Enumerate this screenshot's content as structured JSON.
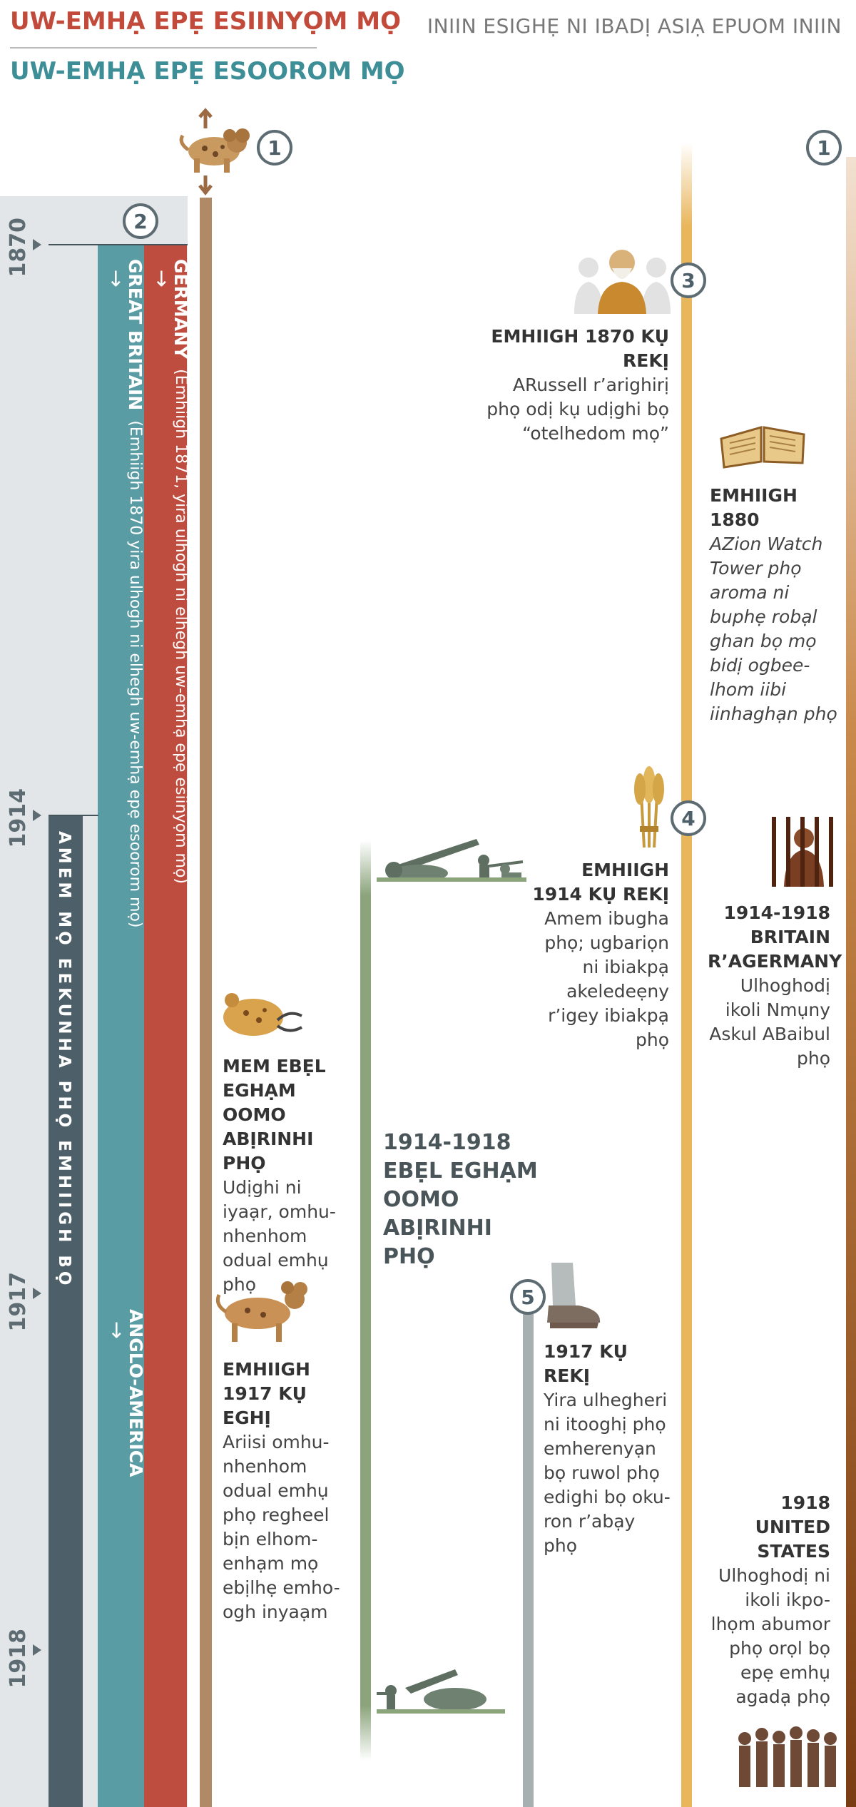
{
  "legend": {
    "primary_line": "UW-EMHẠ EPẸ ESIINYỌM MỌ",
    "secondary_line": "UW-EMHẠ EPẸ ESOOROM MỌ"
  },
  "header_title": "INIIN ESIGHẸ NI IBADỊ ASIẠ EPUOM INIIN",
  "years": [
    "1870",
    "1914",
    "1917",
    "1918"
  ],
  "markers": [
    "1",
    "1",
    "2",
    "3",
    "4",
    "5"
  ],
  "bars": {
    "germany_title": "GERMANY",
    "germany_note": "(Emhiigh 1871, yira ulhogh ni elhegh uw-emhạ epẹ esiinyọm mọ)",
    "britain_title": "GREAT BRITAIN",
    "britain_note": "(Emhiigh 1870 yira ulhogh ni elhegh uw-emhạ epẹ esoorom mọ)",
    "anglo_america": "ANGLO-AMERICA",
    "arrow": "→",
    "dark_label": "AMEM MỌ EEKUNHA PHỌ EMHIIGH BỌ"
  },
  "events": {
    "russell_title": "EMHIIGH 1870 KỤ REKỊ",
    "russell_body": "ARussell r’arighirị phọ odị kụ udịghi bọ “otelhedom mọ”",
    "watchtower_title": "EMHIIGH 1880",
    "watchtower_body": "AZion Watch Tower phọ aroma ni buphẹ robạl ghan bọ mọ bidị ogbee-lhom iibi iinhaghạn phọ",
    "harvest_title": "EMHIIGH 1914 KỤ REKỊ",
    "harvest_body": "Amem ibugha phọ; ugbariọn ni ibiakpạ akeledeẹny r’igey ibiakpạ phọ",
    "persecution_title": "1914-1918 BRITAIN R’AGERMANY",
    "persecution_body": "Ulhoghodị ikoli Nmụny Askul ABaibul phọ",
    "wound_title": "MEM EBẸL EGHẠM OOMO ABỊRINHI PHỌ",
    "wound_body": "Udịghi ni iyaạr, omhu-nhenhom odual emhụ phọ",
    "war_title": "1914-1918 EBẸL EGHẠM OOMO ABỊRINHI PHỌ",
    "feet_title": "1917 KỤ REKỊ",
    "feet_body": "Yira ulhegheri ni itooghị phọ emherenyạn bọ ruwol phọ edighi bọ oku-ron r’abạy phọ",
    "beast_title": "EMHIIGH 1917 KỤ EGHỊ",
    "beast_body": "Ariisi omhu-nhenhom odual emhụ phọ regheel bịn elhom-enhạm mọ ebịlhẹ emho-ogh inyaạm",
    "us_title": "1918 UNITED STATES",
    "us_body": "Ulhoghodị ni ikoli ikpo-lhọm abumor phọ orọl bọ epẹ emhụ agadạ phọ"
  },
  "colors": {
    "germany": "#bf4d3f",
    "britain": "#5a9ca4",
    "dark": "#4d5f68",
    "gray_band": "#e3e6e8",
    "brown_line": "#b08a67",
    "green_line": "#8ba47c",
    "yellow_line": "#e9b65c",
    "legend_red": "#c24a3a",
    "legend_teal": "#3d8e96"
  },
  "icons": [
    "beast-icon",
    "russell-icon",
    "bible-icon",
    "wheat-icon",
    "prisoner-icon",
    "wounded-beast-icon",
    "soldiers-icon",
    "feet-icon",
    "two-horned-beast-icon",
    "crowd-icon"
  ]
}
